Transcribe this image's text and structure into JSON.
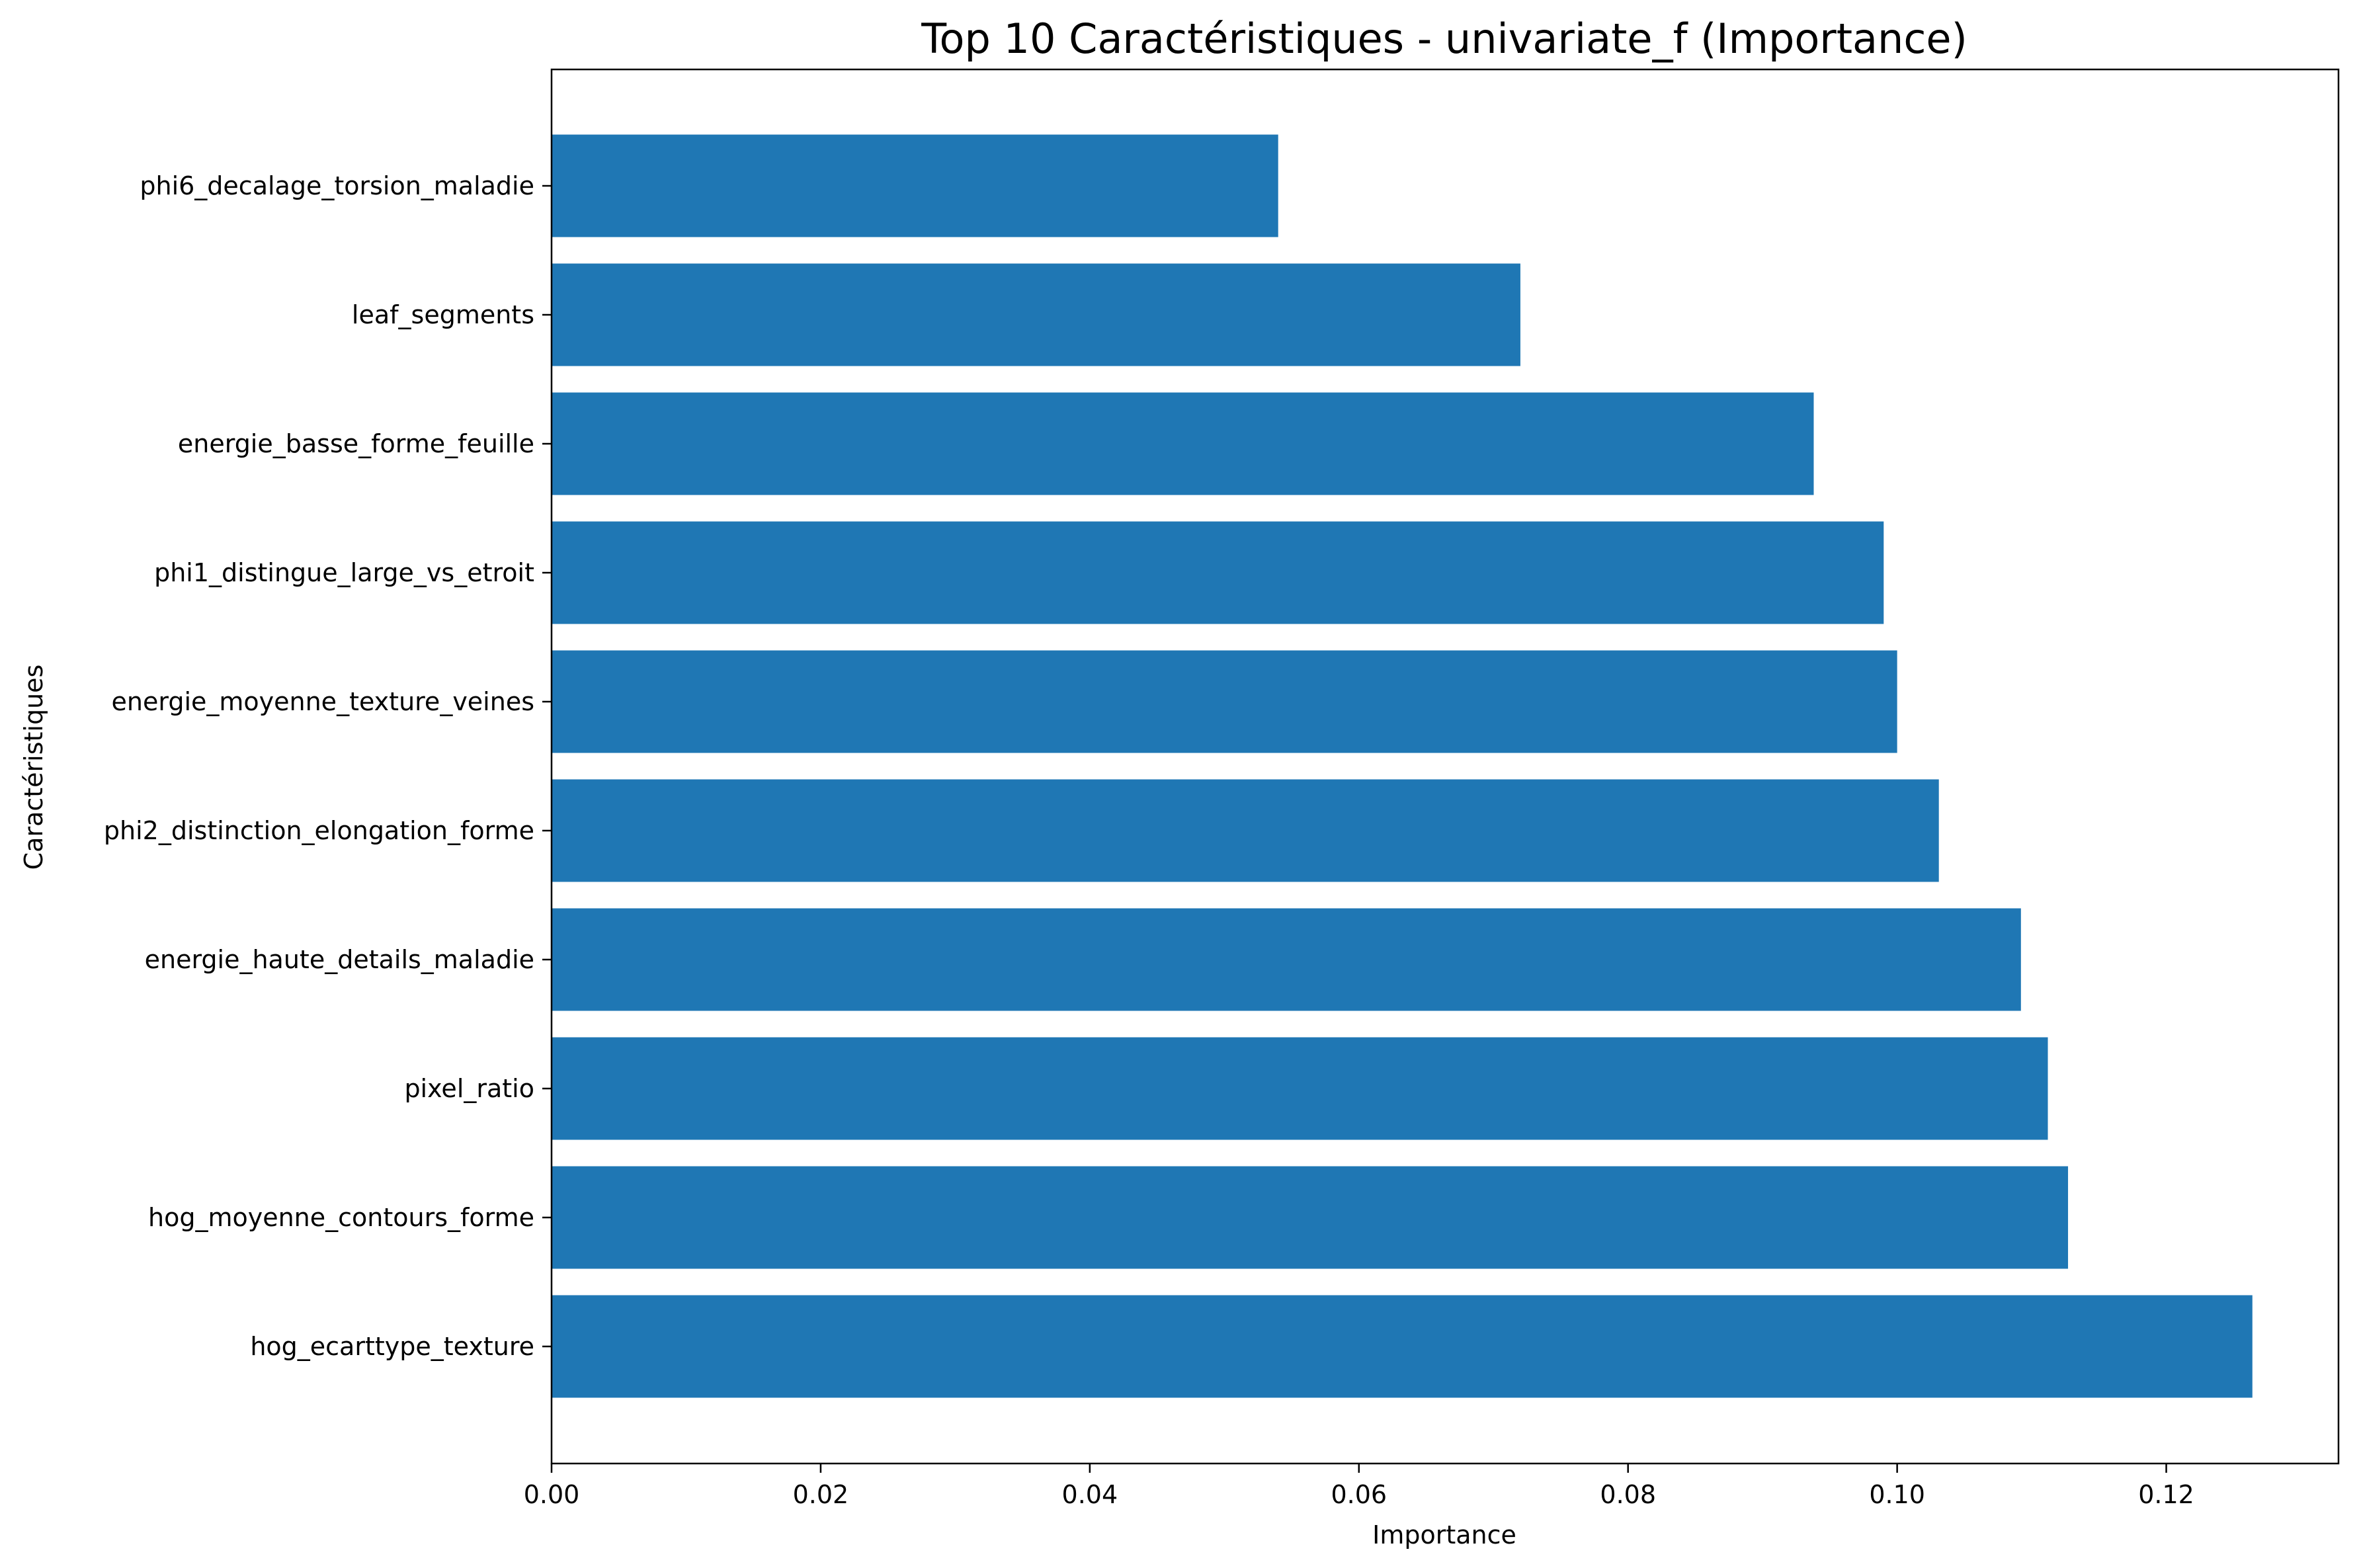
{
  "chart_data": {
    "type": "bar",
    "orientation": "horizontal",
    "title": "Top 10 Caractéristiques - univariate_f (Importance)",
    "xlabel": "Importance",
    "ylabel": "Caractéristiques",
    "xlim": [
      0,
      0.1328
    ],
    "xticks": [
      0.0,
      0.02,
      0.04,
      0.06,
      0.08,
      0.1,
      0.12
    ],
    "xtick_labels": [
      "0.00",
      "0.02",
      "0.04",
      "0.06",
      "0.08",
      "0.10",
      "0.12"
    ],
    "grid": false,
    "bar_color": "#1f77b4",
    "categories": [
      "hog_ecarttype_texture",
      "hog_moyenne_contours_forme",
      "pixel_ratio",
      "energie_haute_details_maladie",
      "phi2_distinction_elongation_forme",
      "energie_moyenne_texture_veines",
      "phi1_distingue_large_vs_etroit",
      "energie_basse_forme_feuille",
      "leaf_segments",
      "phi6_decalage_torsion_maladie"
    ],
    "values": [
      0.1264,
      0.1127,
      0.1112,
      0.1092,
      0.1031,
      0.1,
      0.099,
      0.0938,
      0.072,
      0.054
    ]
  }
}
